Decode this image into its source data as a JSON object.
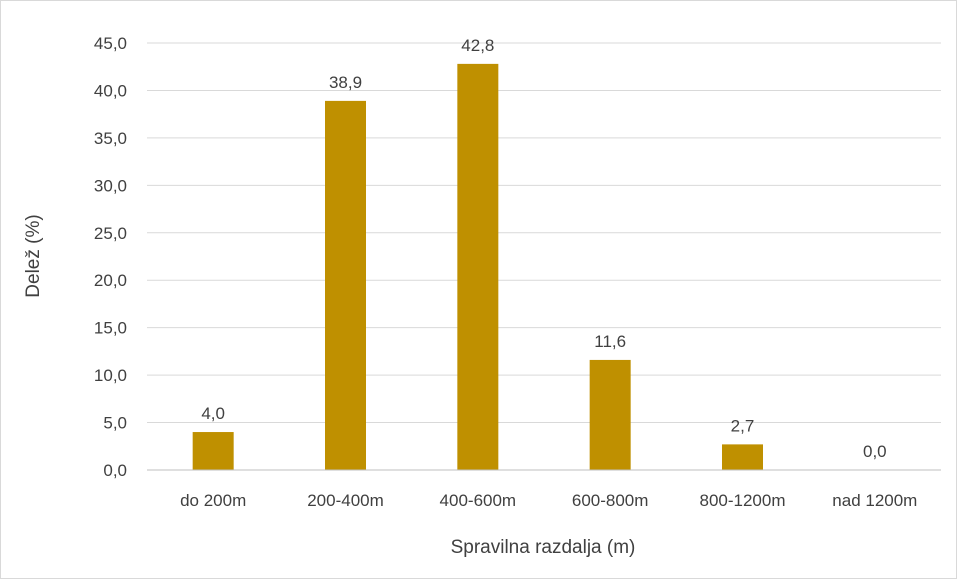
{
  "chart_data": {
    "type": "bar",
    "title": "",
    "xlabel": "Spravilna razdalja (m)",
    "ylabel": "Delež (%)",
    "categories": [
      "do 200m",
      "200-400m",
      "400-600m",
      "600-800m",
      "800-1200m",
      "nad 1200m"
    ],
    "values": [
      4.0,
      38.9,
      42.8,
      11.6,
      2.7,
      0.0
    ],
    "value_labels": [
      "4,0",
      "38,9",
      "42,8",
      "11,6",
      "2,7",
      "0,0"
    ],
    "ylim": [
      0,
      45
    ],
    "ytick_values": [
      0,
      5,
      10,
      15,
      20,
      25,
      30,
      35,
      40,
      45
    ],
    "ytick_labels": [
      "0,0",
      "5,0",
      "10,0",
      "15,0",
      "20,0",
      "25,0",
      "30,0",
      "35,0",
      "40,0",
      "45,0"
    ],
    "grid": true,
    "legend": "none",
    "colors": {
      "bar": "#bf9000",
      "grid": "#d9d9d9",
      "axis": "#bfbfbf",
      "text": "#404040"
    }
  }
}
